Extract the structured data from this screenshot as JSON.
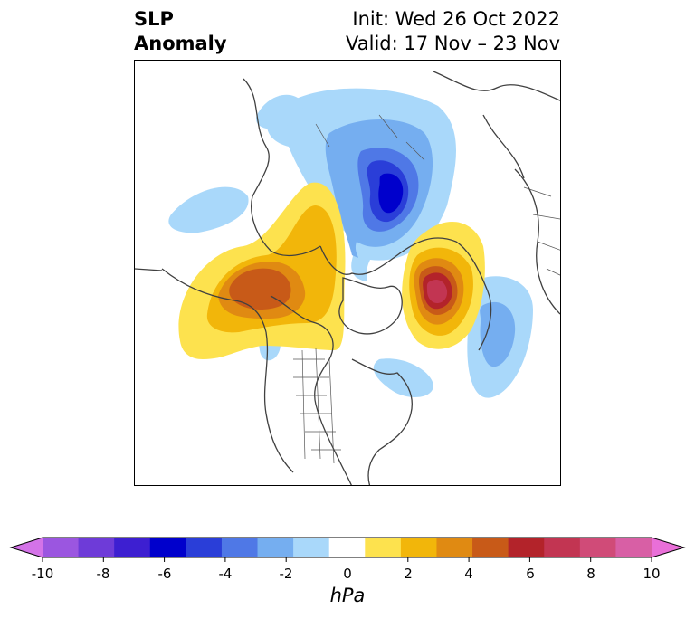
{
  "title": {
    "left_line1": "SLP",
    "left_line2": "Anomaly",
    "right_line1": "Init: Wed 26 Oct 2022",
    "right_line2": "Valid: 17 Nov – 23 Nov"
  },
  "colorbar": {
    "units": "hPa",
    "tick_labels": [
      "-10",
      "-8",
      "-6",
      "-4",
      "-2",
      "0",
      "2",
      "4",
      "6",
      "8",
      "10"
    ],
    "colors": [
      "#d473e8",
      "#9b56e0",
      "#6e3bd8",
      "#3d1fd1",
      "#0000cc",
      "#2a3ed8",
      "#4f78e6",
      "#75aef0",
      "#a9d8fa",
      "#ffffff",
      "#fde24e",
      "#f2b60a",
      "#e08a12",
      "#c85a18",
      "#b3232a",
      "#c23552",
      "#d04b78",
      "#d85fa5",
      "#e96fd8"
    ]
  },
  "map": {
    "projection": "north polar stereographic",
    "features": [
      "coastlines",
      "country-borders",
      "us-state-borders",
      "slp-anomaly-contours"
    ]
  }
}
